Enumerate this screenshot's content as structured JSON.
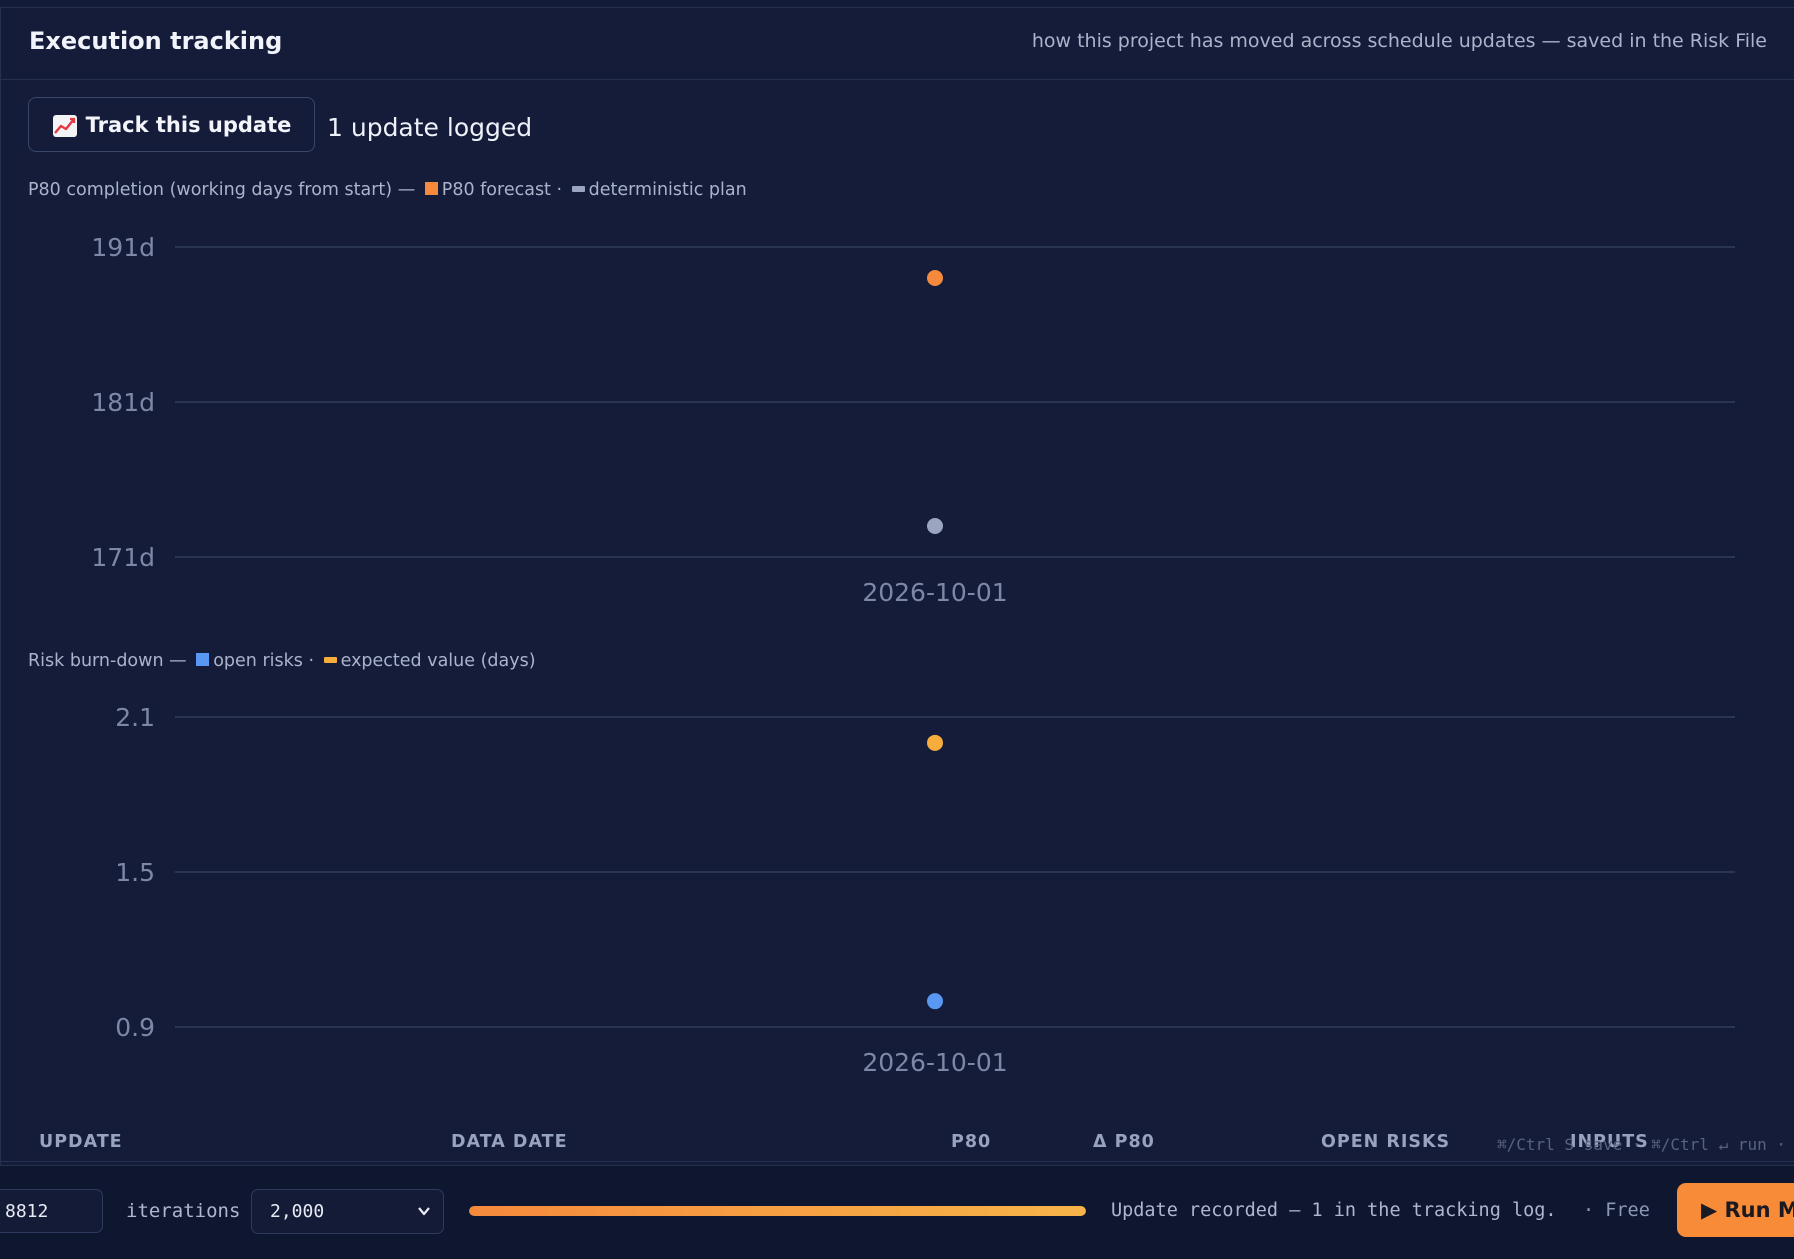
{
  "panel": {
    "title": "Execution tracking",
    "subtitle": "how this project has moved across schedule updates — saved in the Risk File"
  },
  "tracking": {
    "button_label": "Track this update",
    "button_icon": "chart-increasing-icon",
    "updates_count": "1 update logged"
  },
  "p80_chart": {
    "legend_prefix": "P80 completion (working days from start) —",
    "legend_series_1": "P80 forecast",
    "legend_sep": "·",
    "legend_series_2": "deterministic plan"
  },
  "risk_chart": {
    "legend_prefix": "Risk burn-down —",
    "legend_series_1": "open risks",
    "legend_sep": "·",
    "legend_series_2": "expected value (days)"
  },
  "colors": {
    "p80_forecast": "#f58a3c",
    "deterministic_plan": "#9ba5bf",
    "open_risks": "#5898f2",
    "expected_value": "#f7ad3c",
    "accent": "#f88b37"
  },
  "chart_data": [
    {
      "type": "scatter",
      "x": [
        "2026-10-01"
      ],
      "series": [
        {
          "name": "P80 forecast",
          "values": [
            189
          ]
        },
        {
          "name": "deterministic plan",
          "values": [
            173
          ]
        }
      ],
      "xlabel": "",
      "ylabel": "",
      "yticks": [
        "171d",
        "181d",
        "191d"
      ],
      "ylim": [
        171,
        191
      ],
      "grid": true
    },
    {
      "type": "scatter",
      "x": [
        "2026-10-01"
      ],
      "series": [
        {
          "name": "open risks",
          "values": [
            1
          ]
        },
        {
          "name": "expected value (days)",
          "values": [
            2
          ]
        }
      ],
      "xlabel": "",
      "ylabel": "",
      "yticks": [
        "0.9",
        "1.5",
        "2.1"
      ],
      "ylim": [
        0.9,
        2.1
      ],
      "grid": true
    }
  ],
  "table": {
    "headers": [
      "UPDATE",
      "DATA DATE",
      "P80",
      "Δ P80",
      "OPEN RISKS",
      "INPUTS"
    ]
  },
  "shortcut_hint": "⌘/Ctrl S save · ⌘/Ctrl ↵ run ·",
  "footer": {
    "seed_value": "8812",
    "iterations_label": "iterations",
    "iterations_value": "2,000",
    "progress": 1.0,
    "status": "Update recorded — 1 in the tracking log.",
    "tier": "· Free",
    "run_button": "▶ Run Monte Carlo"
  }
}
